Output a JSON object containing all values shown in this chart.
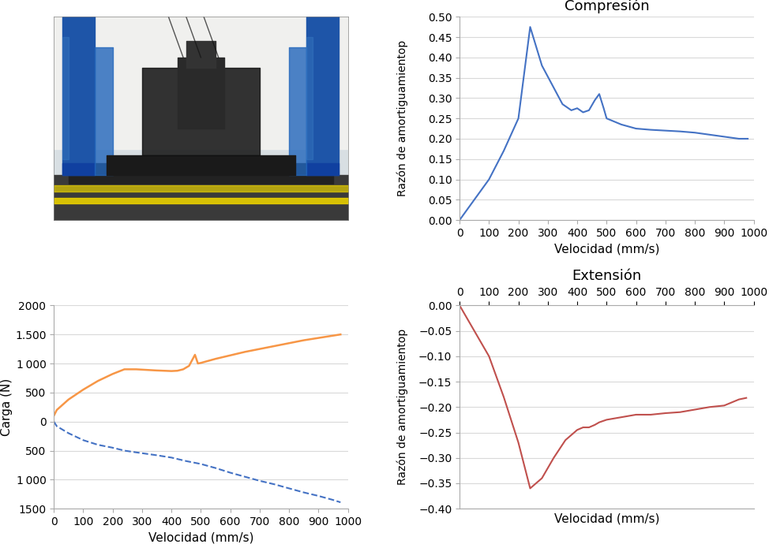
{
  "comprension_x": [
    0,
    10,
    50,
    100,
    150,
    200,
    240,
    280,
    350,
    380,
    400,
    420,
    440,
    460,
    475,
    490,
    500,
    550,
    600,
    650,
    700,
    750,
    800,
    850,
    900,
    950,
    980
  ],
  "comprension_y": [
    0.0,
    0.01,
    0.05,
    0.1,
    0.17,
    0.25,
    0.475,
    0.38,
    0.285,
    0.27,
    0.275,
    0.265,
    0.27,
    0.295,
    0.31,
    0.275,
    0.25,
    0.235,
    0.225,
    0.222,
    0.22,
    0.218,
    0.215,
    0.21,
    0.205,
    0.2,
    0.2
  ],
  "extension_x": [
    0,
    10,
    50,
    100,
    150,
    200,
    240,
    280,
    320,
    360,
    400,
    420,
    440,
    460,
    475,
    500,
    550,
    600,
    650,
    700,
    750,
    800,
    850,
    900,
    950,
    975
  ],
  "extension_y": [
    0.0,
    -0.01,
    -0.05,
    -0.1,
    -0.18,
    -0.27,
    -0.36,
    -0.34,
    -0.3,
    -0.265,
    -0.245,
    -0.24,
    -0.24,
    -0.235,
    -0.23,
    -0.225,
    -0.22,
    -0.215,
    -0.215,
    -0.212,
    -0.21,
    -0.205,
    -0.2,
    -0.197,
    -0.185,
    -0.182
  ],
  "carga_comp_x": [
    0,
    10,
    50,
    100,
    150,
    200,
    240,
    280,
    350,
    400,
    420,
    440,
    460,
    480,
    490,
    500,
    550,
    600,
    650,
    700,
    750,
    800,
    850,
    900,
    950,
    975
  ],
  "carga_comp_y": [
    100,
    200,
    380,
    550,
    700,
    820,
    900,
    900,
    880,
    870,
    875,
    900,
    960,
    1150,
    1000,
    1010,
    1080,
    1140,
    1200,
    1250,
    1300,
    1350,
    1400,
    1440,
    1480,
    1500
  ],
  "carga_ext_x": [
    0,
    10,
    50,
    100,
    150,
    200,
    240,
    280,
    350,
    400,
    450,
    500,
    550,
    600,
    650,
    700,
    750,
    800,
    850,
    900,
    950,
    975
  ],
  "carga_ext_y": [
    0,
    -80,
    -200,
    -320,
    -400,
    -450,
    -500,
    -530,
    -580,
    -620,
    -680,
    -730,
    -800,
    -880,
    -950,
    -1020,
    -1080,
    -1150,
    -1220,
    -1280,
    -1350,
    -1390
  ],
  "comprension_color": "#4472C4",
  "extension_color": "#C0504D",
  "carga_comp_color": "#F79646",
  "carga_ext_color": "#4472C4",
  "title_comprension": "Compresión",
  "title_extension": "Extensión",
  "xlabel": "Velocidad (mm/s)",
  "ylabel_razon": "Razón de amortiguamientop",
  "ylabel_carga": "Carga (N)",
  "comprension_ylim": [
    0.0,
    0.5
  ],
  "comprension_yticks": [
    0.0,
    0.05,
    0.1,
    0.15,
    0.2,
    0.25,
    0.3,
    0.35,
    0.4,
    0.45,
    0.5
  ],
  "extension_ylim": [
    -0.4,
    0.0
  ],
  "extension_yticks": [
    -0.4,
    -0.35,
    -0.3,
    -0.25,
    -0.2,
    -0.15,
    -0.1,
    -0.05,
    0.0
  ],
  "carga_ylim": [
    -1500,
    2000
  ],
  "carga_yticks": [
    -1500,
    -1000,
    -500,
    0,
    500,
    1000,
    1500,
    2000
  ],
  "carga_yticklabels": [
    "1500",
    "1 000",
    "500",
    "0",
    "500",
    "1 000",
    "1.500",
    "2000"
  ],
  "x_lim": [
    0,
    1000
  ],
  "x_ticks": [
    0,
    100,
    200,
    300,
    400,
    500,
    600,
    700,
    800,
    900,
    1000
  ],
  "background_color": "#FFFFFF",
  "grid_color": "#D9D9D9",
  "title_fontsize": 13,
  "label_fontsize": 11,
  "tick_fontsize": 10,
  "photo_bg": "#B8C8D0",
  "photo_floor": "#2A2A2A",
  "photo_col": "#1A55A0",
  "photo_wall": "#E0E8EC"
}
